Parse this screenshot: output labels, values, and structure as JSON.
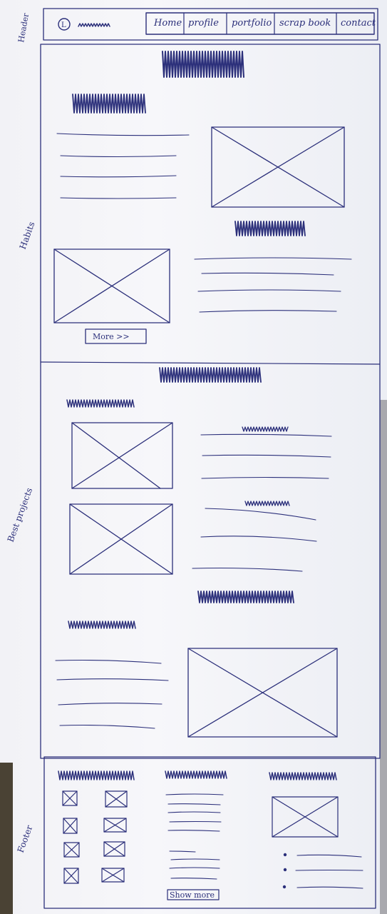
{
  "side_labels": {
    "header": "Header",
    "habits": "Habits",
    "best_projects": "Best projects",
    "footer": "Footer"
  },
  "header": {
    "logo_glyph": "L",
    "nav": [
      {
        "label": "Home"
      },
      {
        "label": "profile"
      },
      {
        "label": "portfolio"
      },
      {
        "label": "scrap book"
      },
      {
        "label": "contact"
      }
    ]
  },
  "habits": {
    "more_button": "More >>"
  },
  "footer": {
    "show_more_button": "Show more"
  },
  "colors": {
    "ink": "#2b2f7a",
    "paper": "#f4f4f7"
  }
}
